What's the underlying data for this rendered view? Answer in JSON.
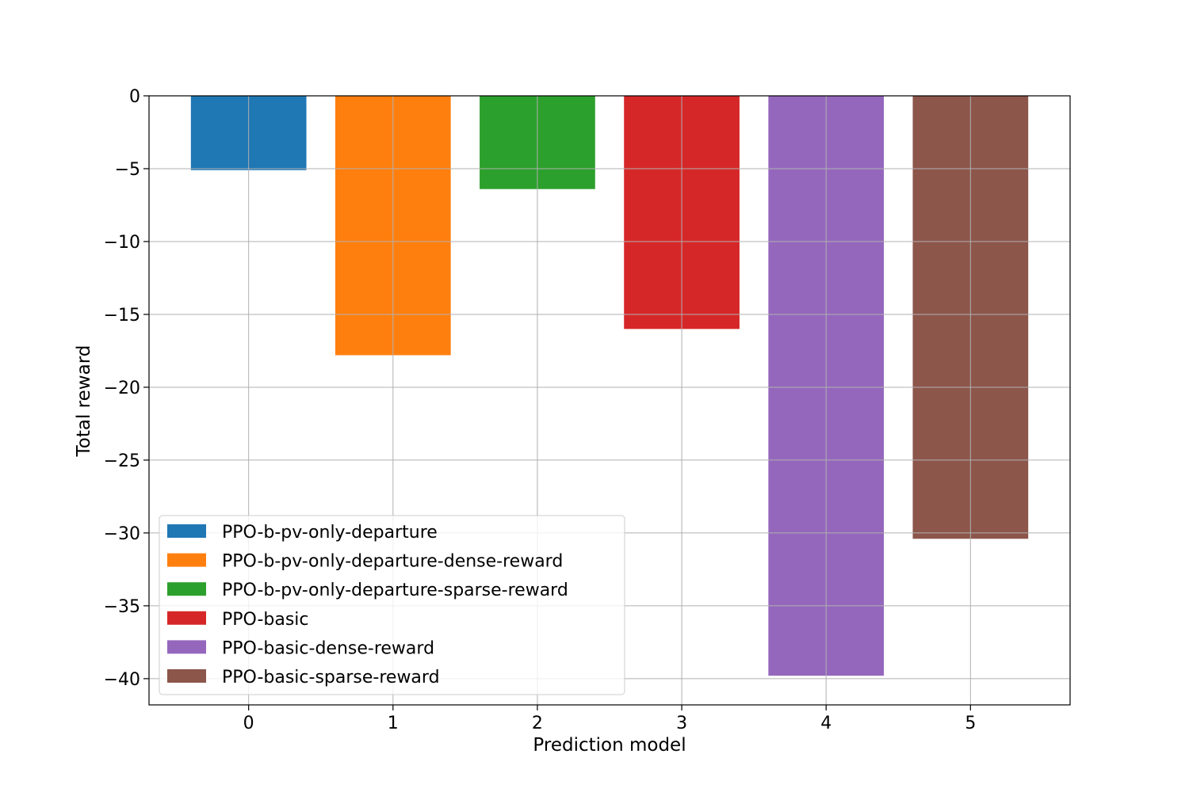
{
  "chart_data": {
    "type": "bar",
    "title": "",
    "xlabel": "Prediction model",
    "ylabel": "Total reward",
    "categories": [
      "0",
      "1",
      "2",
      "3",
      "4",
      "5"
    ],
    "x": [
      0,
      1,
      2,
      3,
      4,
      5
    ],
    "values": [
      -5.1,
      -17.8,
      -6.4,
      -16.0,
      -39.8,
      -30.4
    ],
    "series": [
      {
        "name": "PPO-b-pv-only-departure",
        "x": 0,
        "value": -5.1,
        "color": "#1f77b4"
      },
      {
        "name": "PPO-b-pv-only-departure-dense-reward",
        "x": 1,
        "value": -17.8,
        "color": "#ff7f0e"
      },
      {
        "name": "PPO-b-pv-only-departure-sparse-reward",
        "x": 2,
        "value": -6.4,
        "color": "#2ca02c"
      },
      {
        "name": "PPO-basic",
        "x": 3,
        "value": -16.0,
        "color": "#d62728"
      },
      {
        "name": "PPO-basic-dense-reward",
        "x": 4,
        "value": -39.8,
        "color": "#9467bd"
      },
      {
        "name": "PPO-basic-sparse-reward",
        "x": 5,
        "value": -30.4,
        "color": "#8c564b"
      }
    ],
    "ylim": [
      -41.8,
      0
    ],
    "xlim": [
      -0.69,
      5.69
    ],
    "yticks": [
      0,
      -5,
      -10,
      -15,
      -20,
      -25,
      -30,
      -35,
      -40
    ],
    "ytick_labels": [
      "0",
      "−5",
      "−10",
      "−15",
      "−20",
      "−25",
      "−30",
      "−35",
      "−40"
    ],
    "xtick_labels": [
      "0",
      "1",
      "2",
      "3",
      "4",
      "5"
    ],
    "grid": true,
    "legend_position": "lower-left"
  }
}
